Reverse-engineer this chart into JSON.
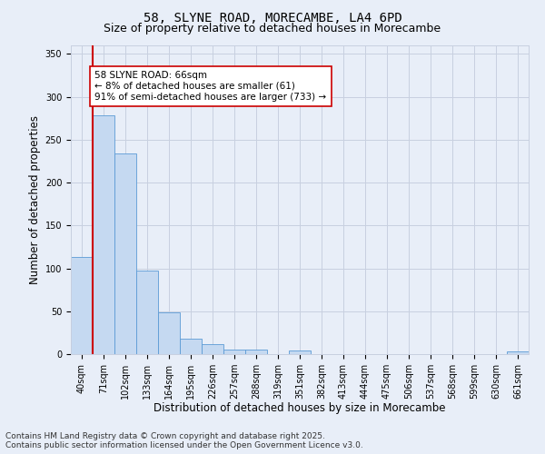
{
  "title_line1": "58, SLYNE ROAD, MORECAMBE, LA4 6PD",
  "title_line2": "Size of property relative to detached houses in Morecambe",
  "xlabel": "Distribution of detached houses by size in Morecambe",
  "ylabel": "Number of detached properties",
  "categories": [
    "40sqm",
    "71sqm",
    "102sqm",
    "133sqm",
    "164sqm",
    "195sqm",
    "226sqm",
    "257sqm",
    "288sqm",
    "319sqm",
    "351sqm",
    "382sqm",
    "413sqm",
    "444sqm",
    "475sqm",
    "506sqm",
    "537sqm",
    "568sqm",
    "599sqm",
    "630sqm",
    "661sqm"
  ],
  "values": [
    113,
    278,
    234,
    97,
    49,
    18,
    12,
    5,
    5,
    0,
    4,
    0,
    0,
    0,
    0,
    0,
    0,
    0,
    0,
    0,
    3
  ],
  "bar_color": "#c5d9f1",
  "bar_edge_color": "#5b9bd5",
  "bar_edge_width": 0.6,
  "vline_color": "#cc0000",
  "vline_linewidth": 1.5,
  "vline_x": 0.5,
  "annotation_text": "58 SLYNE ROAD: 66sqm\n← 8% of detached houses are smaller (61)\n91% of semi-detached houses are larger (733) →",
  "annotation_box_color": "#ffffff",
  "annotation_box_edge": "#cc0000",
  "ylim": [
    0,
    360
  ],
  "yticks": [
    0,
    50,
    100,
    150,
    200,
    250,
    300,
    350
  ],
  "grid_color": "#c8d0e0",
  "background_color": "#e8eef8",
  "footer_line1": "Contains HM Land Registry data © Crown copyright and database right 2025.",
  "footer_line2": "Contains public sector information licensed under the Open Government Licence v3.0.",
  "title_fontsize": 10,
  "subtitle_fontsize": 9,
  "axis_label_fontsize": 8.5,
  "tick_fontsize": 7,
  "annotation_fontsize": 7.5,
  "footer_fontsize": 6.5
}
